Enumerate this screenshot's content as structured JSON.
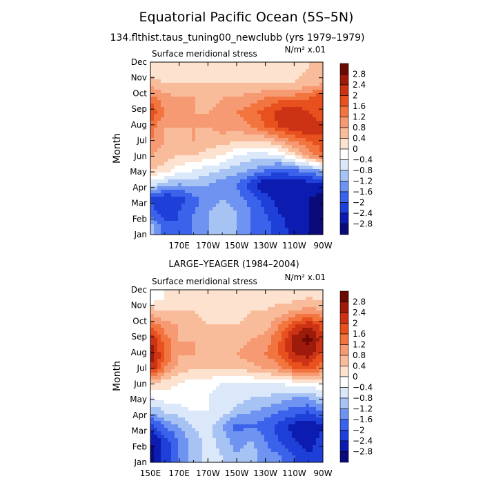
{
  "figure": {
    "title": "Equatorial Pacific Ocean (5S–5N)",
    "subtitle": "134.flthist.taus_tuning00_newclubb (yrs 1979–1979)"
  },
  "chart_data": [
    {
      "type": "heatmap",
      "panel_title": "",
      "field_label": "Surface meridional stress",
      "units_label": "N/m² x.01",
      "ylabel": "Month",
      "xlabel": "",
      "x_tick_labels": [
        "170E",
        "170W",
        "150W",
        "130W",
        "110W",
        "90W"
      ],
      "x_ticks": [
        170,
        190,
        210,
        230,
        250,
        270
      ],
      "xlim": [
        150,
        270
      ],
      "y_tick_labels": [
        "Jan",
        "Feb",
        "Mar",
        "Apr",
        "May",
        "Jun",
        "Jul",
        "Aug",
        "Sep",
        "Oct",
        "Nov",
        "Dec"
      ],
      "colorbar_levels": [
        "2.8",
        "2.4",
        "2",
        "1.6",
        "1.2",
        "0.8",
        "0.4",
        "0",
        "−0.4",
        "−0.8",
        "−1.2",
        "−1.6",
        "−2",
        "−2.4",
        "−2.8"
      ],
      "longitudes": [
        150,
        160,
        170,
        180,
        190,
        200,
        210,
        220,
        230,
        240,
        250,
        260,
        270
      ],
      "values": [
        [
          -1.0,
          -1.8,
          -2.0,
          -1.6,
          -1.2,
          -1.0,
          -1.2,
          -1.6,
          -1.8,
          -2.2,
          -2.6,
          -2.8,
          -3.0
        ],
        [
          -1.8,
          -2.2,
          -2.0,
          -1.6,
          -1.2,
          -1.0,
          -1.2,
          -1.6,
          -2.0,
          -2.4,
          -2.6,
          -2.8,
          -3.0
        ],
        [
          -2.0,
          -2.4,
          -2.2,
          -1.8,
          -1.4,
          -1.2,
          -1.4,
          -1.8,
          -2.2,
          -2.6,
          -2.8,
          -2.8,
          -3.0
        ],
        [
          -0.6,
          -1.0,
          -1.2,
          -1.0,
          -1.2,
          -1.4,
          -1.6,
          -2.2,
          -2.8,
          -2.8,
          -2.8,
          -2.6,
          -2.4
        ],
        [
          0.4,
          0.2,
          -0.2,
          -0.4,
          -0.6,
          -0.8,
          -1.0,
          -1.2,
          -1.6,
          -1.8,
          -1.6,
          -1.4,
          -1.0
        ],
        [
          0.8,
          0.6,
          0.4,
          0.4,
          0.2,
          0.0,
          -0.4,
          -0.6,
          -0.6,
          -0.4,
          0.2,
          1.0,
          1.6
        ],
        [
          1.2,
          0.8,
          0.6,
          0.8,
          0.6,
          0.6,
          0.4,
          0.4,
          0.4,
          0.8,
          1.2,
          1.6,
          1.8
        ],
        [
          1.4,
          0.8,
          0.8,
          0.8,
          0.8,
          1.0,
          1.0,
          1.2,
          1.6,
          2.0,
          2.4,
          2.4,
          2.2
        ],
        [
          2.0,
          1.2,
          0.8,
          0.8,
          0.8,
          1.0,
          1.2,
          1.4,
          1.8,
          2.2,
          2.4,
          2.0,
          1.6
        ],
        [
          1.4,
          1.0,
          0.8,
          0.8,
          0.6,
          0.8,
          0.8,
          1.0,
          1.2,
          1.4,
          1.4,
          1.6,
          2.0
        ],
        [
          0.6,
          0.4,
          0.4,
          0.4,
          0.4,
          0.4,
          0.4,
          0.4,
          0.4,
          0.4,
          0.4,
          0.6,
          0.8
        ],
        [
          0.2,
          0.2,
          0.2,
          0.2,
          0.2,
          0.2,
          0.2,
          0.0,
          0.2,
          0.2,
          0.2,
          0.4,
          0.4
        ]
      ]
    },
    {
      "type": "heatmap",
      "panel_title": "LARGE–YEAGER (1984–2004)",
      "field_label": "Surface meridional stress",
      "units_label": "N/m² x.01",
      "ylabel": "Month",
      "xlabel": "",
      "x_tick_labels": [
        "150E",
        "170E",
        "170W",
        "150W",
        "130W",
        "110W",
        "90W"
      ],
      "x_ticks": [
        150,
        170,
        190,
        210,
        230,
        250,
        270
      ],
      "xlim": [
        150,
        270
      ],
      "y_tick_labels": [
        "Jan",
        "Feb",
        "Mar",
        "Apr",
        "May",
        "Jun",
        "Jul",
        "Aug",
        "Sep",
        "Oct",
        "Nov",
        "Dec"
      ],
      "colorbar_levels": [
        "2.8",
        "2.4",
        "2",
        "1.6",
        "1.2",
        "0.8",
        "0.4",
        "0",
        "−0.4",
        "−0.8",
        "−1.2",
        "−1.6",
        "−2",
        "−2.4",
        "−2.8"
      ],
      "longitudes": [
        150,
        160,
        170,
        180,
        190,
        200,
        210,
        220,
        230,
        240,
        250,
        260,
        270
      ],
      "values": [
        [
          -3.0,
          -2.2,
          -1.6,
          -1.0,
          -0.6,
          -0.8,
          -1.2,
          -1.0,
          -1.4,
          -1.6,
          -2.0,
          -2.4,
          -2.0
        ],
        [
          -2.8,
          -2.2,
          -1.6,
          -1.0,
          -0.6,
          -1.0,
          -1.4,
          -1.2,
          -1.6,
          -2.0,
          -2.4,
          -2.6,
          -2.2
        ],
        [
          -2.2,
          -1.6,
          -1.2,
          -0.8,
          -0.6,
          -1.2,
          -1.8,
          -1.6,
          -1.8,
          -2.2,
          -2.6,
          -2.8,
          -2.4
        ],
        [
          -1.2,
          -0.8,
          -0.6,
          -0.4,
          -0.4,
          -0.6,
          -1.0,
          -1.2,
          -1.4,
          -1.6,
          -1.8,
          -2.0,
          -1.6
        ],
        [
          -0.4,
          -0.2,
          -0.2,
          -0.2,
          -0.4,
          -0.6,
          -0.6,
          -0.8,
          -0.8,
          -1.0,
          -1.2,
          -1.2,
          -0.8
        ],
        [
          0.4,
          0.2,
          0.0,
          -0.2,
          -0.2,
          -0.4,
          -0.4,
          -0.4,
          -0.4,
          -0.4,
          -0.2,
          -0.2,
          0.0
        ],
        [
          2.4,
          1.2,
          0.6,
          0.4,
          0.4,
          0.4,
          0.4,
          0.6,
          0.8,
          1.0,
          1.6,
          1.8,
          1.2
        ],
        [
          2.8,
          1.6,
          0.8,
          0.8,
          0.6,
          0.8,
          0.8,
          1.0,
          1.2,
          1.6,
          2.4,
          2.6,
          1.8
        ],
        [
          2.4,
          1.4,
          0.8,
          0.8,
          0.6,
          0.6,
          0.6,
          0.8,
          1.0,
          1.6,
          2.6,
          3.0,
          2.2
        ],
        [
          1.6,
          1.0,
          0.8,
          0.6,
          0.4,
          0.4,
          0.4,
          0.6,
          0.6,
          1.2,
          2.0,
          2.4,
          1.8
        ],
        [
          0.6,
          0.4,
          0.4,
          0.4,
          0.2,
          0.2,
          0.2,
          0.4,
          0.4,
          0.6,
          0.8,
          1.0,
          0.8
        ],
        [
          -0.4,
          0.0,
          0.2,
          0.2,
          0.2,
          0.0,
          0.0,
          0.2,
          0.2,
          0.2,
          0.2,
          0.4,
          0.2
        ]
      ]
    }
  ],
  "colors": {
    "scale": [
      "#0a0a7a",
      "#0c1cb0",
      "#1f40d8",
      "#3a62ea",
      "#6f93f0",
      "#a7c3f4",
      "#dbe8fa",
      "#ffffff",
      "#fde3cf",
      "#f9bc9a",
      "#f59a72",
      "#f2743e",
      "#e8511d",
      "#cc3315",
      "#9e1a0a",
      "#6b0a02"
    ]
  }
}
